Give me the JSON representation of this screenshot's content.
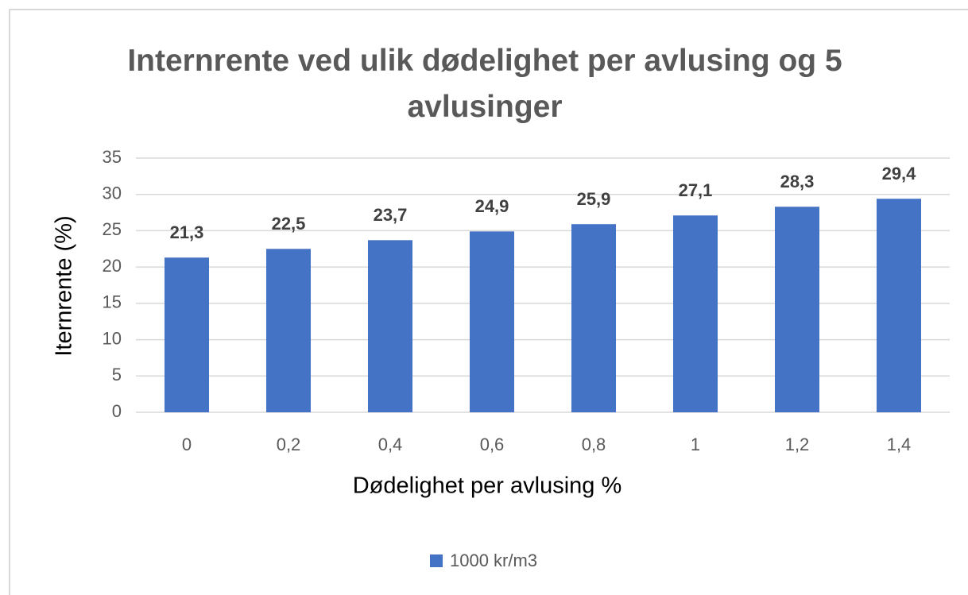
{
  "chart_data": {
    "type": "bar",
    "title": "Internrente ved ulik dødelighet per avlusing og 5 avlusinger",
    "x_label": "Dødelighet per avlusing %",
    "y_label": "Iternrente (%)",
    "categories": [
      "0",
      "0,2",
      "0,4",
      "0,6",
      "0,8",
      "1",
      "1,2",
      "1,4"
    ],
    "series": [
      {
        "name": "1000 kr/m3",
        "color": "#4472c4",
        "values": [
          21.3,
          22.5,
          23.7,
          24.9,
          25.9,
          27.1,
          28.3,
          29.4
        ],
        "value_labels": [
          "21,3",
          "22,5",
          "23,7",
          "24,9",
          "25,9",
          "27,1",
          "28,3",
          "29,4"
        ]
      }
    ],
    "ylim": [
      0,
      35
    ],
    "yticks": [
      0,
      5,
      10,
      15,
      20,
      25,
      30,
      35
    ],
    "grid": true,
    "legend": "bottom"
  }
}
